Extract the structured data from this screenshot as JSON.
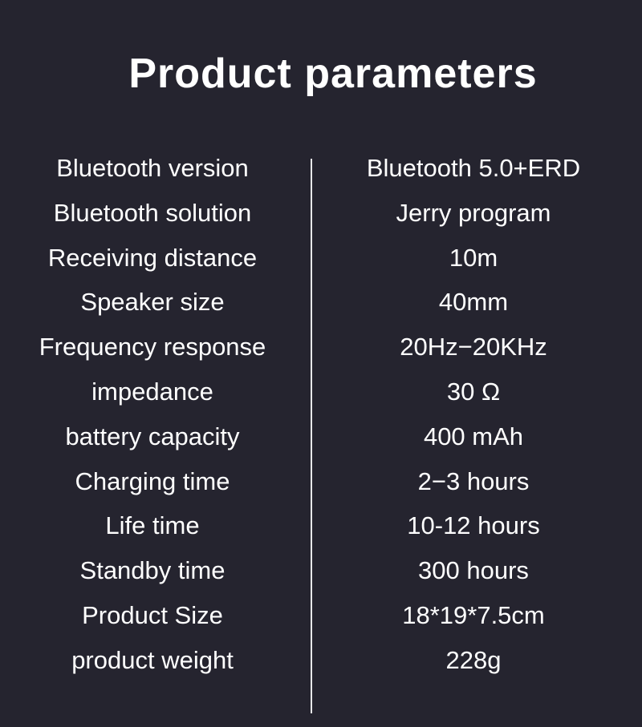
{
  "title": "Product parameters",
  "params": [
    {
      "label": "Bluetooth version",
      "value": "Bluetooth 5.0+ERD"
    },
    {
      "label": "Bluetooth solution",
      "value": "Jerry program"
    },
    {
      "label": "Receiving distance",
      "value": "10m"
    },
    {
      "label": "Speaker size",
      "value": "40mm"
    },
    {
      "label": "Frequency response",
      "value": "20Hz−20KHz"
    },
    {
      "label": "impedance",
      "value": "30 Ω"
    },
    {
      "label": "battery capacity",
      "value": "400 mAh"
    },
    {
      "label": "Charging time",
      "value": "2−3 hours"
    },
    {
      "label": "Life time",
      "value": "10-12 hours"
    },
    {
      "label": "Standby time",
      "value": "300 hours"
    },
    {
      "label": "Product Size",
      "value": "18*19*7.5cm"
    },
    {
      "label": "product weight",
      "value": "228g"
    }
  ]
}
